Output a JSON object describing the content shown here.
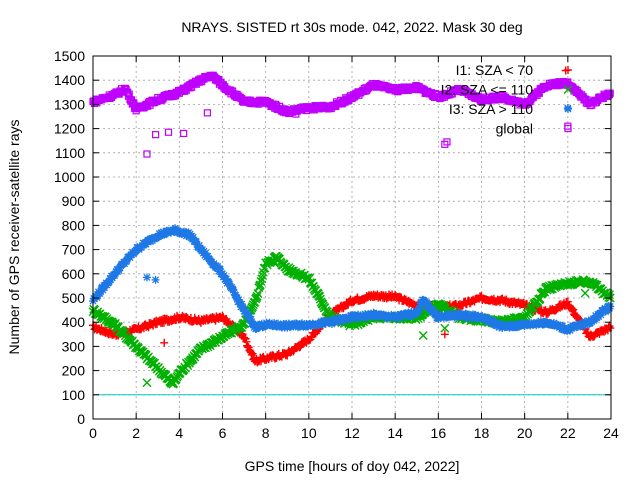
{
  "chart_data": {
    "type": "scatter",
    "title": "NRAYS. SISTED rt 30s mode. 042, 2022. Mask 30 deg",
    "xlabel": "GPS time [hours of doy 042, 2022]",
    "ylabel": "Number of GPS receiver-satellite rays",
    "xlim": [
      0,
      24
    ],
    "ylim": [
      0,
      1500
    ],
    "xticks": [
      "0",
      "2",
      "4",
      "6",
      "8",
      "10",
      "12",
      "14",
      "16",
      "18",
      "20",
      "22",
      "24"
    ],
    "yticks": [
      "0",
      "100",
      "200",
      "300",
      "400",
      "500",
      "600",
      "700",
      "800",
      "900",
      "1000",
      "1100",
      "1200",
      "1300",
      "1400",
      "1500"
    ],
    "grid": true,
    "legend_position": "top-right",
    "reference_line": {
      "y": 100,
      "color": "#00c8c8"
    },
    "series": [
      {
        "name": "I1: SZA < 70",
        "marker": "plus",
        "color": "#ff0000",
        "x": [
          0,
          1,
          2,
          3,
          4,
          5,
          6,
          7,
          7.5,
          8,
          9,
          10,
          11,
          12,
          13,
          14,
          15,
          16,
          17,
          18,
          19,
          20,
          21,
          22,
          23,
          24
        ],
        "y": [
          380,
          350,
          370,
          400,
          420,
          405,
          420,
          340,
          240,
          250,
          270,
          330,
          430,
          490,
          510,
          505,
          470,
          460,
          470,
          500,
          490,
          470,
          440,
          480,
          340,
          380
        ],
        "outliers": {
          "x": [
            3.3,
            16.3,
            21.9
          ],
          "y": [
            315,
            350,
            1440
          ]
        }
      },
      {
        "name": "I2: SZA <= 110",
        "marker": "cross",
        "color": "#00b000",
        "x": [
          0,
          1,
          2,
          3,
          3.7,
          4,
          5,
          6,
          7,
          7.5,
          8,
          8.5,
          9,
          10,
          11,
          12,
          13,
          14,
          15,
          16,
          17,
          18,
          19,
          20,
          21,
          22,
          23,
          24
        ],
        "y": [
          450,
          390,
          300,
          210,
          145,
          190,
          290,
          340,
          390,
          480,
          640,
          670,
          620,
          580,
          420,
          390,
          420,
          420,
          420,
          470,
          420,
          410,
          400,
          420,
          540,
          560,
          570,
          500
        ],
        "outliers": {
          "x": [
            2.5,
            15.3,
            16.3,
            22.8
          ],
          "y": [
            150,
            345,
            375,
            520
          ]
        }
      },
      {
        "name": "I3: SZA > 110",
        "marker": "star",
        "color": "#1e78e6",
        "x": [
          0,
          1,
          2,
          3,
          3.8,
          4.5,
          5,
          6,
          7,
          7.5,
          8,
          9,
          10,
          11,
          12,
          13,
          14,
          15,
          15.3,
          16,
          17,
          18,
          19,
          20,
          21,
          22,
          23,
          24
        ],
        "y": [
          490,
          600,
          700,
          760,
          780,
          760,
          700,
          600,
          450,
          380,
          390,
          385,
          390,
          400,
          420,
          430,
          420,
          440,
          490,
          420,
          430,
          420,
          380,
          390,
          400,
          370,
          400,
          470
        ],
        "outliers": {
          "x": [
            2.5,
            2.9,
            22.0
          ],
          "y": [
            585,
            575,
            1285
          ]
        }
      },
      {
        "name": "global",
        "marker": "square",
        "color": "#c000ff",
        "x": [
          0,
          1,
          1.5,
          2,
          3,
          4,
          5,
          5.5,
          6,
          7,
          8,
          9,
          10,
          11,
          12,
          13,
          14,
          15,
          16,
          17,
          18,
          19,
          20,
          21,
          22,
          23,
          24
        ],
        "y": [
          1310,
          1340,
          1365,
          1280,
          1320,
          1350,
          1400,
          1420,
          1380,
          1310,
          1310,
          1270,
          1285,
          1290,
          1330,
          1380,
          1360,
          1370,
          1330,
          1360,
          1320,
          1330,
          1300,
          1380,
          1390,
          1300,
          1350
        ],
        "outliers": {
          "x": [
            2.5,
            2.9,
            3.5,
            4.2,
            5.3,
            16.3,
            16.4,
            22.0,
            9.4
          ],
          "y": [
            1095,
            1175,
            1185,
            1180,
            1265,
            1135,
            1145,
            1210,
            1260
          ]
        }
      }
    ]
  }
}
